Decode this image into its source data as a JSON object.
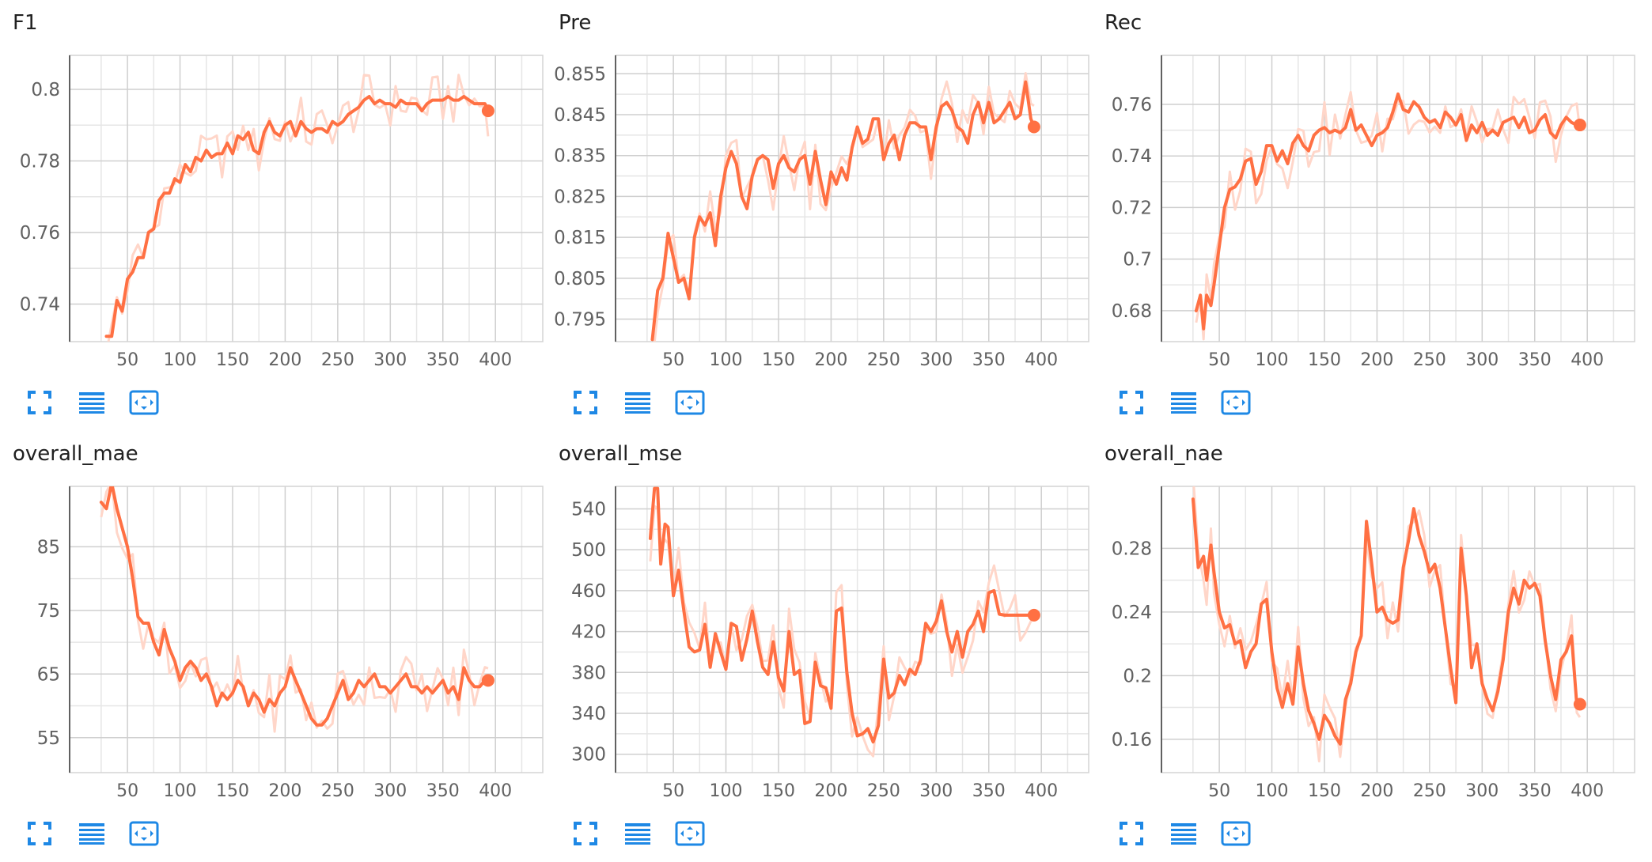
{
  "theme": {
    "line_color": "#ff7043",
    "raw_color": "#ffd6c9",
    "grid_color": "#cfcfcf",
    "icon_color": "#1e88e5"
  },
  "toolbar_icons": [
    "fullscreen-icon",
    "data-table-icon",
    "fit-domain-icon"
  ],
  "chart_data": [
    {
      "type": "line",
      "title": "F1",
      "xticks": [
        50,
        100,
        150,
        200,
        250,
        300,
        350,
        400
      ],
      "yticks": [
        0.74,
        0.76,
        0.78,
        0.8
      ],
      "xlim": [
        -5,
        445
      ],
      "ylim": [
        0.7295,
        0.8095
      ],
      "grid": true,
      "series": [
        {
          "x": [
            30,
            35,
            40,
            45,
            50,
            55,
            60,
            65,
            70,
            75,
            80,
            85,
            90,
            95,
            100,
            105,
            110,
            115,
            120,
            125,
            130,
            135,
            140,
            145,
            150,
            155,
            160,
            165,
            170,
            175,
            180,
            185,
            190,
            195,
            200,
            205,
            210,
            215,
            220,
            225,
            230,
            235,
            240,
            245,
            250,
            255,
            260,
            265,
            270,
            275,
            280,
            285,
            290,
            295,
            300,
            305,
            310,
            315,
            320,
            325,
            330,
            335,
            340,
            345,
            350,
            355,
            360,
            365,
            370,
            375,
            380,
            385,
            390,
            393
          ],
          "y": [
            0.731,
            0.731,
            0.741,
            0.738,
            0.747,
            0.749,
            0.753,
            0.753,
            0.76,
            0.761,
            0.769,
            0.771,
            0.771,
            0.775,
            0.774,
            0.779,
            0.777,
            0.781,
            0.78,
            0.783,
            0.781,
            0.782,
            0.782,
            0.785,
            0.782,
            0.787,
            0.786,
            0.788,
            0.783,
            0.782,
            0.788,
            0.791,
            0.788,
            0.787,
            0.79,
            0.791,
            0.787,
            0.791,
            0.789,
            0.788,
            0.789,
            0.789,
            0.788,
            0.791,
            0.79,
            0.791,
            0.793,
            0.794,
            0.795,
            0.797,
            0.798,
            0.796,
            0.797,
            0.796,
            0.796,
            0.795,
            0.797,
            0.796,
            0.796,
            0.796,
            0.794,
            0.796,
            0.797,
            0.797,
            0.797,
            0.798,
            0.797,
            0.797,
            0.798,
            0.797,
            0.796,
            0.796,
            0.796,
            0.794
          ]
        }
      ]
    },
    {
      "type": "line",
      "title": "Pre",
      "xticks": [
        50,
        100,
        150,
        200,
        250,
        300,
        350,
        400
      ],
      "yticks": [
        0.795,
        0.805,
        0.815,
        0.825,
        0.835,
        0.845,
        0.855
      ],
      "xlim": [
        -5,
        445
      ],
      "ylim": [
        0.7895,
        0.8595
      ],
      "grid": true,
      "series": [
        {
          "x": [
            30,
            35,
            40,
            45,
            50,
            55,
            60,
            65,
            70,
            75,
            80,
            85,
            90,
            95,
            100,
            105,
            110,
            115,
            120,
            125,
            130,
            135,
            140,
            145,
            150,
            155,
            160,
            165,
            170,
            175,
            180,
            185,
            190,
            195,
            200,
            205,
            210,
            215,
            220,
            225,
            230,
            235,
            240,
            245,
            250,
            255,
            260,
            265,
            270,
            275,
            280,
            285,
            290,
            295,
            300,
            305,
            310,
            315,
            320,
            325,
            330,
            335,
            340,
            345,
            350,
            355,
            360,
            365,
            370,
            375,
            380,
            385,
            390,
            393
          ],
          "y": [
            0.79,
            0.802,
            0.805,
            0.816,
            0.81,
            0.804,
            0.805,
            0.8,
            0.815,
            0.82,
            0.818,
            0.821,
            0.813,
            0.825,
            0.832,
            0.836,
            0.833,
            0.825,
            0.822,
            0.83,
            0.834,
            0.835,
            0.834,
            0.827,
            0.833,
            0.835,
            0.832,
            0.831,
            0.834,
            0.835,
            0.828,
            0.836,
            0.829,
            0.823,
            0.831,
            0.828,
            0.832,
            0.829,
            0.837,
            0.842,
            0.838,
            0.839,
            0.844,
            0.844,
            0.834,
            0.838,
            0.84,
            0.834,
            0.84,
            0.843,
            0.843,
            0.842,
            0.842,
            0.834,
            0.842,
            0.847,
            0.848,
            0.846,
            0.842,
            0.841,
            0.838,
            0.845,
            0.848,
            0.843,
            0.848,
            0.843,
            0.844,
            0.846,
            0.848,
            0.844,
            0.845,
            0.853,
            0.844,
            0.842
          ]
        }
      ]
    },
    {
      "type": "line",
      "title": "Rec",
      "xticks": [
        50,
        100,
        150,
        200,
        250,
        300,
        350,
        400
      ],
      "yticks": [
        0.68,
        0.7,
        0.72,
        0.74,
        0.76
      ],
      "xlim": [
        -5,
        445
      ],
      "ylim": [
        0.668,
        0.779
      ],
      "grid": true,
      "series": [
        {
          "x": [
            28,
            32,
            35,
            38,
            42,
            45,
            50,
            55,
            60,
            65,
            70,
            75,
            80,
            85,
            90,
            95,
            100,
            105,
            110,
            115,
            120,
            125,
            130,
            135,
            140,
            145,
            150,
            155,
            160,
            165,
            170,
            175,
            180,
            185,
            190,
            195,
            200,
            205,
            210,
            215,
            220,
            225,
            230,
            235,
            240,
            245,
            250,
            255,
            260,
            265,
            270,
            275,
            280,
            285,
            290,
            295,
            300,
            305,
            310,
            315,
            320,
            325,
            330,
            335,
            340,
            345,
            350,
            355,
            360,
            365,
            370,
            375,
            380,
            385,
            390,
            393
          ],
          "y": [
            0.68,
            0.686,
            0.673,
            0.686,
            0.682,
            0.69,
            0.705,
            0.72,
            0.727,
            0.728,
            0.731,
            0.738,
            0.739,
            0.729,
            0.734,
            0.744,
            0.744,
            0.738,
            0.742,
            0.737,
            0.745,
            0.748,
            0.744,
            0.742,
            0.748,
            0.75,
            0.751,
            0.749,
            0.75,
            0.749,
            0.751,
            0.758,
            0.75,
            0.752,
            0.748,
            0.744,
            0.748,
            0.749,
            0.751,
            0.757,
            0.764,
            0.758,
            0.757,
            0.761,
            0.759,
            0.755,
            0.753,
            0.754,
            0.751,
            0.757,
            0.755,
            0.752,
            0.756,
            0.746,
            0.752,
            0.749,
            0.753,
            0.748,
            0.75,
            0.748,
            0.753,
            0.754,
            0.755,
            0.751,
            0.755,
            0.749,
            0.75,
            0.754,
            0.756,
            0.749,
            0.747,
            0.752,
            0.755,
            0.753,
            0.752,
            0.752
          ]
        }
      ]
    },
    {
      "type": "line",
      "title": "overall_mae",
      "xticks": [
        50,
        100,
        150,
        200,
        250,
        300,
        350,
        400
      ],
      "yticks": [
        55,
        65,
        75,
        85
      ],
      "xlim": [
        -5,
        445
      ],
      "ylim": [
        49.5,
        94.5
      ],
      "grid": true,
      "series": [
        {
          "x": [
            25,
            30,
            35,
            40,
            45,
            50,
            55,
            60,
            65,
            70,
            75,
            80,
            85,
            90,
            95,
            100,
            105,
            110,
            115,
            120,
            125,
            130,
            135,
            140,
            145,
            150,
            155,
            160,
            165,
            170,
            175,
            180,
            185,
            190,
            195,
            200,
            205,
            210,
            215,
            220,
            225,
            230,
            235,
            240,
            245,
            250,
            255,
            260,
            265,
            270,
            275,
            280,
            285,
            290,
            295,
            300,
            305,
            310,
            315,
            320,
            325,
            330,
            335,
            340,
            345,
            350,
            355,
            360,
            365,
            370,
            375,
            380,
            385,
            390,
            393
          ],
          "y": [
            92,
            91,
            95,
            91,
            88,
            85,
            80,
            74,
            73,
            73,
            70,
            68,
            72,
            69,
            67,
            64,
            66,
            67,
            66,
            64,
            65,
            63,
            60,
            62,
            61,
            62,
            64,
            63,
            60,
            62,
            61,
            59,
            61,
            60,
            62,
            63,
            66,
            64,
            62,
            60,
            58,
            57,
            57,
            58,
            60,
            62,
            64,
            61,
            62,
            64,
            63,
            64,
            65,
            63,
            63,
            62,
            63,
            64,
            65,
            63,
            63,
            62,
            63,
            62,
            63,
            64,
            62,
            63,
            61,
            66,
            64,
            63,
            63,
            64,
            64
          ]
        }
      ]
    },
    {
      "type": "line",
      "title": "overall_mse",
      "xticks": [
        50,
        100,
        150,
        200,
        250,
        300,
        350,
        400
      ],
      "yticks": [
        300,
        340,
        380,
        420,
        460,
        500,
        540
      ],
      "xlim": [
        -5,
        445
      ],
      "ylim": [
        282,
        562
      ],
      "grid": true,
      "series": [
        {
          "x": [
            28,
            32,
            35,
            38,
            42,
            45,
            50,
            55,
            60,
            65,
            70,
            75,
            80,
            85,
            90,
            95,
            100,
            105,
            110,
            115,
            120,
            125,
            130,
            135,
            140,
            145,
            150,
            155,
            160,
            165,
            170,
            175,
            180,
            185,
            190,
            195,
            200,
            205,
            210,
            215,
            220,
            225,
            230,
            235,
            240,
            245,
            250,
            255,
            260,
            265,
            270,
            275,
            280,
            285,
            290,
            295,
            300,
            305,
            310,
            315,
            320,
            325,
            330,
            335,
            340,
            345,
            350,
            355,
            360,
            365,
            370,
            375,
            380,
            385,
            390,
            393
          ],
          "y": [
            511,
            560,
            560,
            486,
            525,
            522,
            455,
            480,
            440,
            405,
            400,
            402,
            427,
            385,
            418,
            400,
            383,
            428,
            425,
            392,
            413,
            440,
            410,
            385,
            378,
            410,
            375,
            362,
            420,
            378,
            382,
            330,
            332,
            390,
            367,
            365,
            345,
            440,
            443,
            380,
            340,
            318,
            320,
            325,
            312,
            328,
            393,
            355,
            360,
            377,
            368,
            383,
            378,
            392,
            428,
            420,
            430,
            450,
            420,
            400,
            420,
            395,
            420,
            427,
            440,
            420,
            458,
            460,
            437,
            436,
            436,
            436,
            436,
            436,
            436,
            436
          ]
        }
      ]
    },
    {
      "type": "line",
      "title": "overall_nae",
      "xticks": [
        50,
        100,
        150,
        200,
        250,
        300,
        350,
        400
      ],
      "yticks": [
        0.16,
        0.2,
        0.24,
        0.28
      ],
      "xlim": [
        -5,
        445
      ],
      "ylim": [
        0.139,
        0.319
      ],
      "grid": true,
      "series": [
        {
          "x": [
            25,
            30,
            35,
            38,
            42,
            45,
            50,
            55,
            60,
            65,
            70,
            75,
            80,
            85,
            90,
            95,
            100,
            105,
            110,
            115,
            120,
            125,
            130,
            135,
            140,
            145,
            150,
            155,
            160,
            165,
            170,
            175,
            180,
            185,
            190,
            195,
            200,
            205,
            210,
            215,
            220,
            225,
            230,
            235,
            240,
            245,
            250,
            255,
            260,
            265,
            270,
            275,
            280,
            285,
            290,
            295,
            300,
            305,
            310,
            315,
            320,
            325,
            330,
            335,
            340,
            345,
            350,
            355,
            360,
            365,
            370,
            375,
            380,
            385,
            390,
            393
          ],
          "y": [
            0.311,
            0.268,
            0.275,
            0.26,
            0.282,
            0.265,
            0.24,
            0.23,
            0.232,
            0.22,
            0.222,
            0.205,
            0.215,
            0.22,
            0.245,
            0.248,
            0.215,
            0.192,
            0.18,
            0.195,
            0.182,
            0.218,
            0.195,
            0.178,
            0.17,
            0.16,
            0.175,
            0.17,
            0.162,
            0.157,
            0.185,
            0.195,
            0.215,
            0.225,
            0.297,
            0.27,
            0.24,
            0.243,
            0.235,
            0.233,
            0.235,
            0.268,
            0.285,
            0.305,
            0.288,
            0.278,
            0.265,
            0.27,
            0.255,
            0.23,
            0.205,
            0.183,
            0.28,
            0.25,
            0.205,
            0.22,
            0.195,
            0.185,
            0.178,
            0.19,
            0.21,
            0.24,
            0.255,
            0.245,
            0.26,
            0.255,
            0.258,
            0.25,
            0.222,
            0.2,
            0.185,
            0.21,
            0.215,
            0.225,
            0.182,
            0.182
          ]
        }
      ]
    }
  ]
}
